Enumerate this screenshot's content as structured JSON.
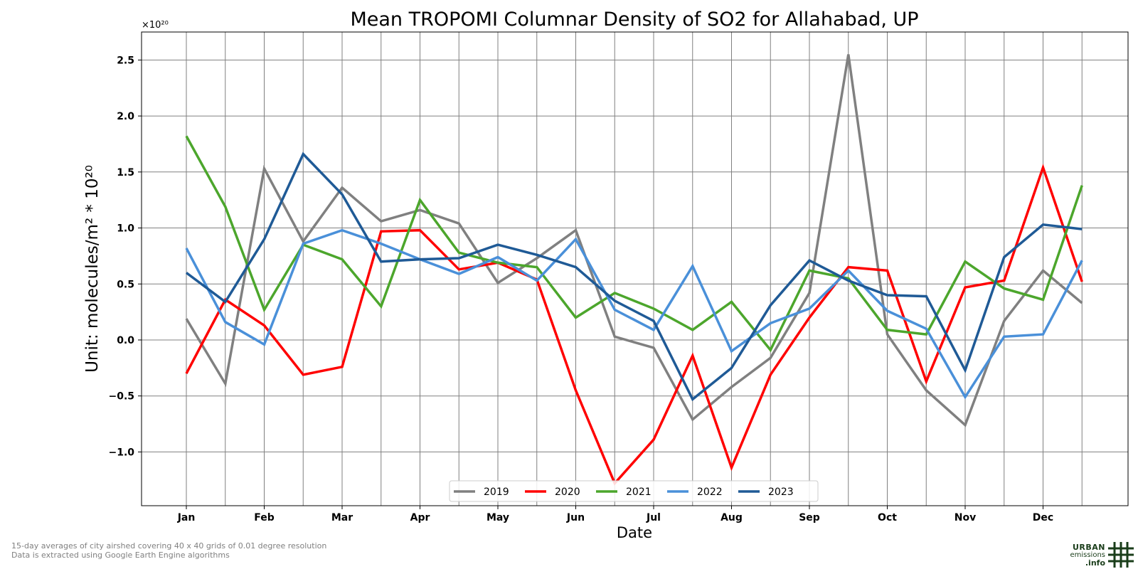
{
  "chart_data": {
    "type": "line",
    "title": "Mean TROPOMI Columnar Density of SO2 for Allahabad, UP",
    "xlabel": "Date",
    "ylabel": "Unit: molecules/m² * 10²⁰",
    "y_multiplier": "×10²⁰",
    "categories": [
      "Jan",
      "",
      "Feb",
      "",
      "Mar",
      "",
      "Apr",
      "",
      "May",
      "",
      "Jun",
      "",
      "Jul",
      "",
      "Aug",
      "",
      "Sep",
      "",
      "Oct",
      "",
      "Nov",
      "",
      "Dec",
      ""
    ],
    "x_tick_labels": [
      "Jan",
      "Feb",
      "Mar",
      "Apr",
      "May",
      "Jun",
      "Jul",
      "Aug",
      "Sep",
      "Oct",
      "Nov",
      "Dec"
    ],
    "y_ticks": [
      -1.0,
      -0.5,
      0.0,
      0.5,
      1.0,
      1.5,
      2.0,
      2.5
    ],
    "y_tick_labels": [
      "−1.0",
      "−0.5",
      "0.0",
      "0.5",
      "1.0",
      "1.5",
      "2.0",
      "2.5"
    ],
    "ylim": [
      -1.48,
      2.75
    ],
    "grid": true,
    "legend_position": "bottom-center",
    "series": [
      {
        "name": "2019",
        "color": "#808080",
        "values": [
          0.19,
          -0.39,
          1.53,
          0.88,
          1.36,
          1.06,
          1.16,
          1.04,
          0.51,
          0.73,
          0.98,
          0.03,
          -0.07,
          -0.71,
          -0.42,
          -0.16,
          0.42,
          2.55,
          0.05,
          -0.45,
          -0.76,
          0.17,
          0.62,
          0.33
        ]
      },
      {
        "name": "2020",
        "color": "#ff0000",
        "values": [
          -0.3,
          0.36,
          0.13,
          -0.31,
          -0.24,
          0.97,
          0.98,
          0.63,
          0.69,
          0.54,
          -0.45,
          -1.28,
          -0.89,
          -0.14,
          -1.14,
          -0.31,
          0.2,
          0.65,
          0.62,
          -0.37,
          0.47,
          0.53,
          1.54,
          0.52
        ]
      },
      {
        "name": "2021",
        "color": "#4ca62c",
        "values": [
          1.82,
          1.19,
          0.27,
          0.85,
          0.72,
          0.3,
          1.25,
          0.78,
          0.69,
          0.65,
          0.2,
          0.42,
          0.28,
          0.09,
          0.34,
          -0.09,
          0.62,
          0.55,
          0.09,
          0.05,
          0.7,
          0.46,
          0.36,
          1.38
        ]
      },
      {
        "name": "2022",
        "color": "#4a90d9",
        "values": [
          0.82,
          0.16,
          -0.04,
          0.86,
          0.98,
          0.86,
          0.72,
          0.59,
          0.74,
          0.53,
          0.9,
          0.27,
          0.09,
          0.66,
          -0.1,
          0.15,
          0.28,
          0.62,
          0.26,
          0.1,
          -0.51,
          0.03,
          0.05,
          0.71
        ]
      },
      {
        "name": "2023",
        "color": "#1f5a96",
        "values": [
          0.6,
          0.34,
          0.9,
          1.66,
          1.3,
          0.7,
          0.72,
          0.73,
          0.85,
          0.76,
          0.65,
          0.35,
          0.17,
          -0.53,
          -0.25,
          0.31,
          0.71,
          0.53,
          0.4,
          0.39,
          -0.27,
          0.74,
          1.03,
          0.99
        ]
      }
    ]
  },
  "footnote": {
    "line1": "15-day averages of city airshed covering 40 x 40 grids of 0.01 degree resolution",
    "line2": "Data is extracted using Google Earth Engine algorithms"
  },
  "logo": {
    "line1": "URBAN",
    "line2": "emissions",
    "line3": ".info",
    "color": "#1a3d1a"
  }
}
